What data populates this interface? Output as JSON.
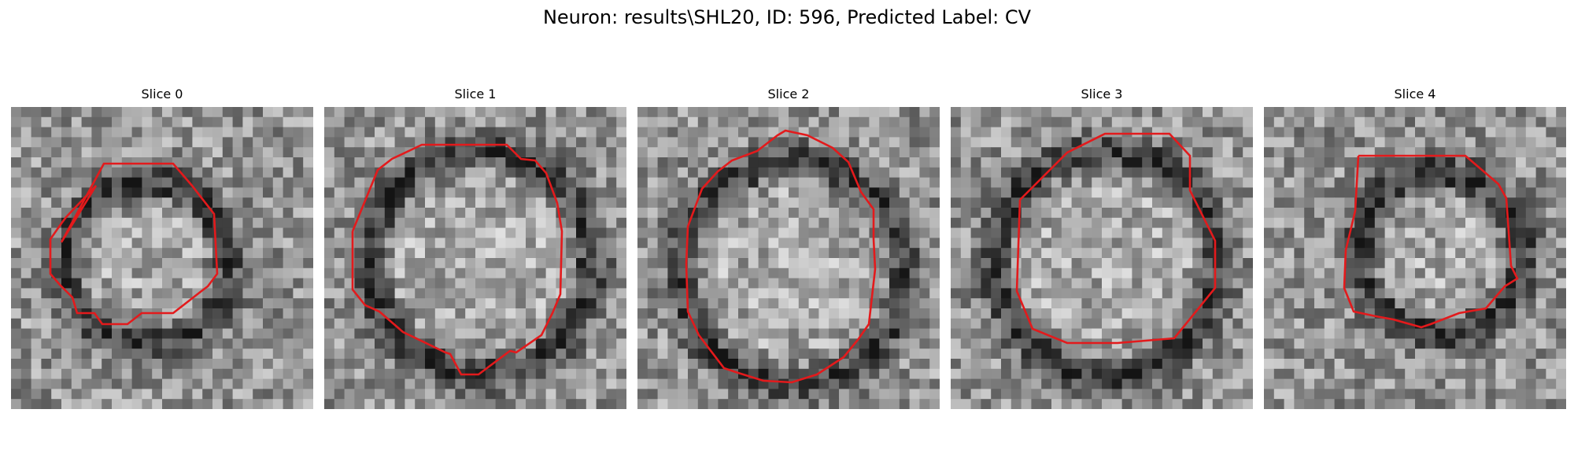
{
  "figure": {
    "title": "Neuron: results\\SHL20, ID: 596, Predicted Label: CV"
  },
  "panels": [
    {
      "title": "Slice 0"
    },
    {
      "title": "Slice 1"
    },
    {
      "title": "Slice 2"
    },
    {
      "title": "Slice 3"
    },
    {
      "title": "Slice 4"
    }
  ],
  "colors": {
    "contour": "#e31a1c",
    "background": "#ffffff",
    "image_colormap": "grayscale"
  }
}
